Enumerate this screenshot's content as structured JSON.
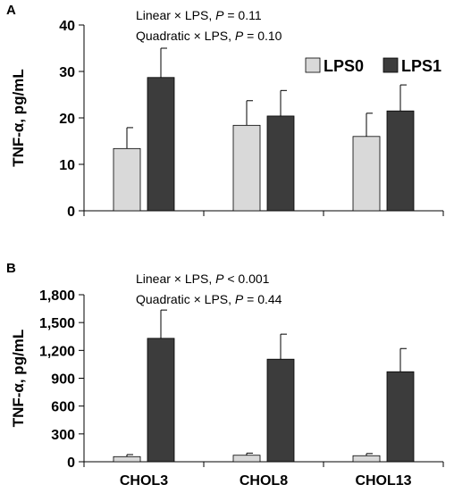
{
  "colors": {
    "LPS0": "#d9d9d9",
    "LPS1": "#3c3c3c",
    "axis": "#000000",
    "errorbar": "#000000"
  },
  "legend": {
    "position": "top-right",
    "items": [
      {
        "label": "LPS0",
        "color": "#d9d9d9"
      },
      {
        "label": "LPS1",
        "color": "#3c3c3c"
      }
    ]
  },
  "chart_data": [
    {
      "panel": "A",
      "type": "bar",
      "categories": [
        "CHOL3",
        "CHOL8",
        "CHOL13"
      ],
      "show_category_labels": false,
      "ylabel": "TNF-α, pg/mL",
      "ylim": [
        0,
        40
      ],
      "yticks": [
        "0",
        "10",
        "20",
        "30",
        "40"
      ],
      "ytick_values": [
        0,
        10,
        20,
        30,
        40
      ],
      "annotations": {
        "line1": {
          "pre": "Linear × LPS, ",
          "p": "P",
          "post": " = 0.11"
        },
        "line2": {
          "pre": "Quadratic × LPS, ",
          "p": "P",
          "post": " = 0.10"
        }
      },
      "legend": true,
      "grid": false,
      "series": [
        {
          "name": "LPS0",
          "values": [
            13.4,
            18.4,
            16.0
          ],
          "errors": [
            4.5,
            5.3,
            5.0
          ]
        },
        {
          "name": "LPS1",
          "values": [
            28.7,
            20.4,
            21.5
          ],
          "errors": [
            6.3,
            5.5,
            5.6
          ]
        }
      ]
    },
    {
      "panel": "B",
      "type": "bar",
      "categories": [
        "CHOL3",
        "CHOL8",
        "CHOL13"
      ],
      "show_category_labels": true,
      "ylabel": "TNF-α, pg/mL",
      "ylim": [
        0,
        1800
      ],
      "yticks": [
        "0",
        "300",
        "600",
        "900",
        "1,200",
        "1,500",
        "1,800"
      ],
      "ytick_values": [
        0,
        300,
        600,
        900,
        1200,
        1500,
        1800
      ],
      "annotations": {
        "line1": {
          "pre": "Linear × LPS, ",
          "p": "P",
          "post": " < 0.001"
        },
        "line2": {
          "pre": "Quadratic × LPS, ",
          "p": "P",
          "post": " = 0.44"
        }
      },
      "legend": false,
      "grid": false,
      "series": [
        {
          "name": "LPS0",
          "values": [
            55,
            70,
            65
          ],
          "errors": [
            22,
            23,
            23
          ]
        },
        {
          "name": "LPS1",
          "values": [
            1330,
            1105,
            970
          ],
          "errors": [
            305,
            270,
            250
          ]
        }
      ]
    }
  ]
}
